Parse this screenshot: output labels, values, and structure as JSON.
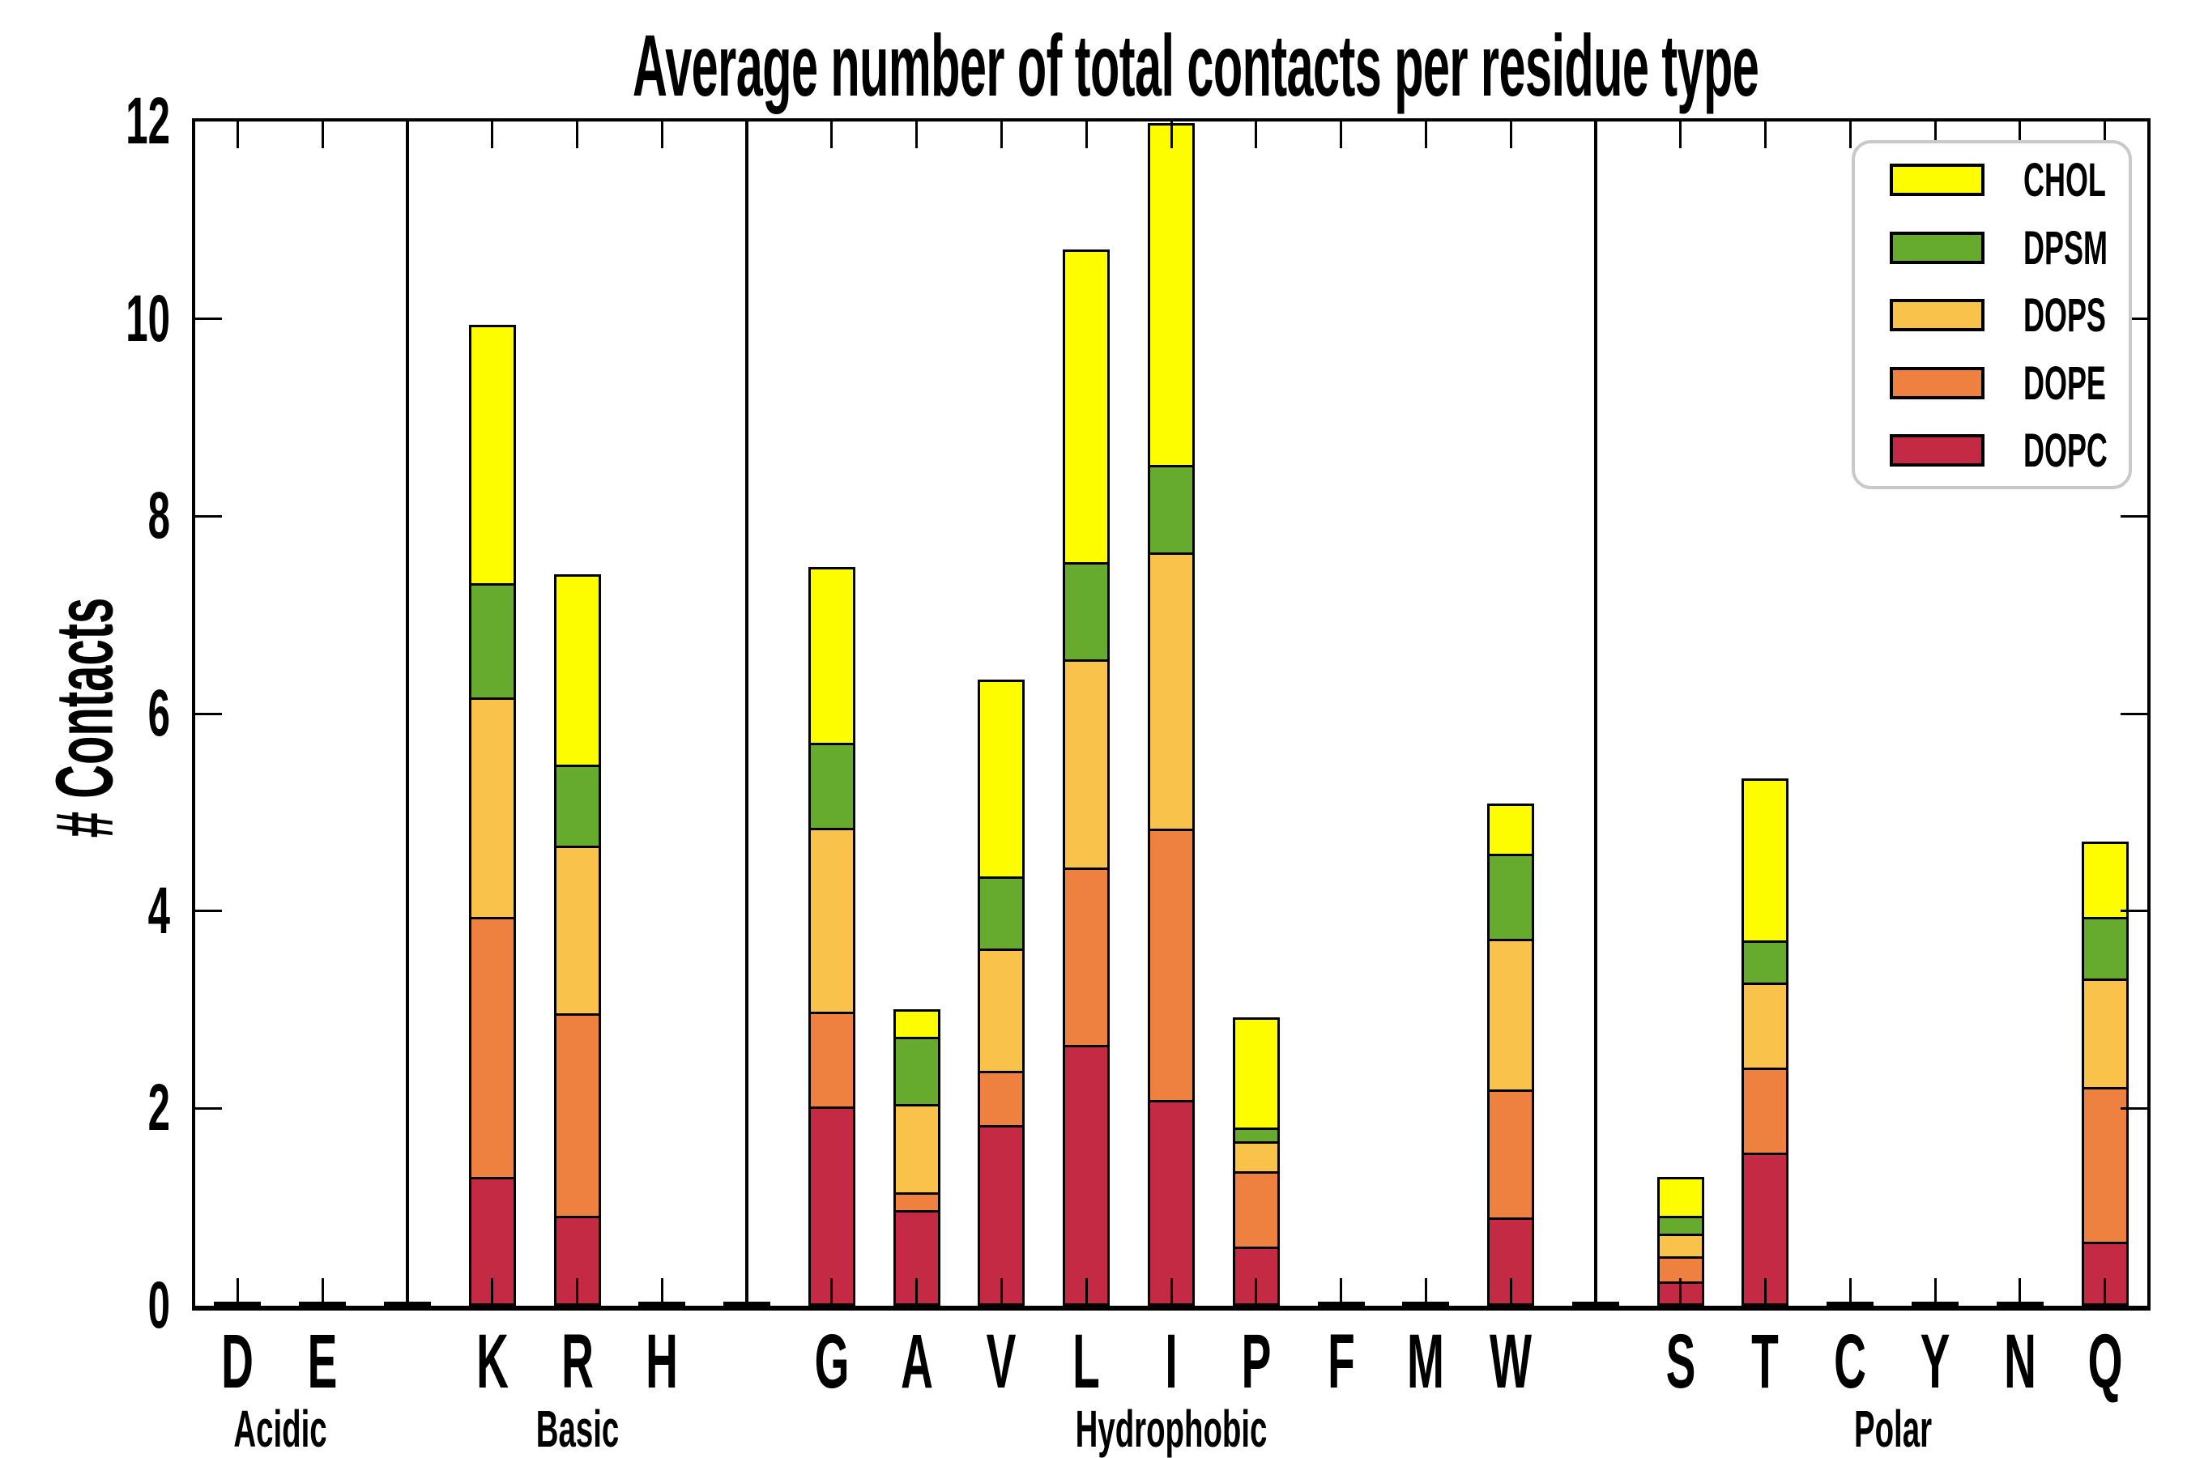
{
  "title": "Average number of total contacts per residue type",
  "y_axis": {
    "label": "# Contacts",
    "ticks": [
      0,
      2,
      4,
      6,
      8,
      10,
      12
    ],
    "min": 0,
    "max": 12
  },
  "legend": {
    "position": "top-right",
    "items": [
      {
        "label": "CHOL",
        "color": "#FDFD00"
      },
      {
        "label": "DPSM",
        "color": "#66AB2D"
      },
      {
        "label": "DOPS",
        "color": "#F9C34B"
      },
      {
        "label": "DOPE",
        "color": "#EE8140"
      },
      {
        "label": "DOPC",
        "color": "#C42A43"
      }
    ]
  },
  "colors": {
    "bar_edge": "#000000",
    "frame": "#000000",
    "legend_border": "#c9c9c9",
    "background": "#ffffff"
  },
  "chart_data": {
    "type": "bar",
    "stacked": true,
    "title": "Average number of total contacts per residue type",
    "xlabel": "",
    "ylabel": "# Contacts",
    "ylim": [
      0,
      12
    ],
    "grid": false,
    "legend_position": "upper right",
    "categories": [
      "D",
      "E",
      "K",
      "R",
      "H",
      "G",
      "A",
      "V",
      "L",
      "I",
      "P",
      "F",
      "M",
      "W",
      "S",
      "T",
      "C",
      "Y",
      "N",
      "Q"
    ],
    "groups": [
      {
        "label": "Acidic",
        "residues": [
          "D",
          "E"
        ]
      },
      {
        "label": "Basic",
        "residues": [
          "K",
          "R",
          "H"
        ]
      },
      {
        "label": "Hydrophobic",
        "residues": [
          "G",
          "A",
          "V",
          "L",
          "I",
          "P",
          "F",
          "M",
          "W"
        ]
      },
      {
        "label": "Polar",
        "residues": [
          "S",
          "T",
          "C",
          "Y",
          "N",
          "Q"
        ]
      }
    ],
    "series_order_bottom_to_top": [
      "DOPC",
      "DOPE",
      "DOPS",
      "DPSM",
      "CHOL"
    ],
    "series": [
      {
        "name": "DOPC",
        "color": "#C42A43",
        "values": [
          0,
          0,
          1.29,
          0.9,
          0,
          2.01,
          0.96,
          1.82,
          2.63,
          2.07,
          0.59,
          0,
          0,
          0.88,
          0.23,
          1.54,
          0,
          0,
          0,
          0.64
        ]
      },
      {
        "name": "DOPE",
        "color": "#EE8140",
        "values": [
          0,
          0,
          2.64,
          2.05,
          0,
          0.96,
          0.18,
          0.55,
          1.8,
          2.75,
          0.76,
          0,
          0,
          1.3,
          0.26,
          0.86,
          0,
          0,
          0,
          1.56
        ]
      },
      {
        "name": "DOPS",
        "color": "#F9C34B",
        "values": [
          0,
          0,
          2.22,
          1.7,
          0,
          1.86,
          0.89,
          1.24,
          2.11,
          2.8,
          0.3,
          0,
          0,
          1.53,
          0.23,
          0.86,
          0,
          0,
          0,
          1.1
        ]
      },
      {
        "name": "DPSM",
        "color": "#66AB2D",
        "values": [
          0,
          0,
          1.16,
          0.82,
          0,
          0.86,
          0.68,
          0.73,
          0.98,
          0.89,
          0.14,
          0,
          0,
          0.86,
          0.18,
          0.43,
          0,
          0,
          0,
          0.63
        ]
      },
      {
        "name": "CHOL",
        "color": "#FDFD00",
        "values": [
          0,
          0,
          2.62,
          1.93,
          0,
          1.78,
          0.28,
          1.99,
          3.17,
          3.46,
          1.12,
          0,
          0,
          0.51,
          0.39,
          1.64,
          0,
          0,
          0,
          0.76
        ]
      }
    ],
    "totals": [
      0.02,
      0.02,
      9.93,
      7.4,
      0.02,
      7.47,
      2.99,
      6.33,
      10.69,
      11.97,
      2.91,
      0.02,
      0.02,
      5.08,
      1.29,
      5.33,
      0.02,
      0.02,
      0.02,
      4.69
    ],
    "near_zero_trace_residues": [
      "D",
      "E",
      "H",
      "F",
      "M",
      "C",
      "Y",
      "N"
    ]
  }
}
